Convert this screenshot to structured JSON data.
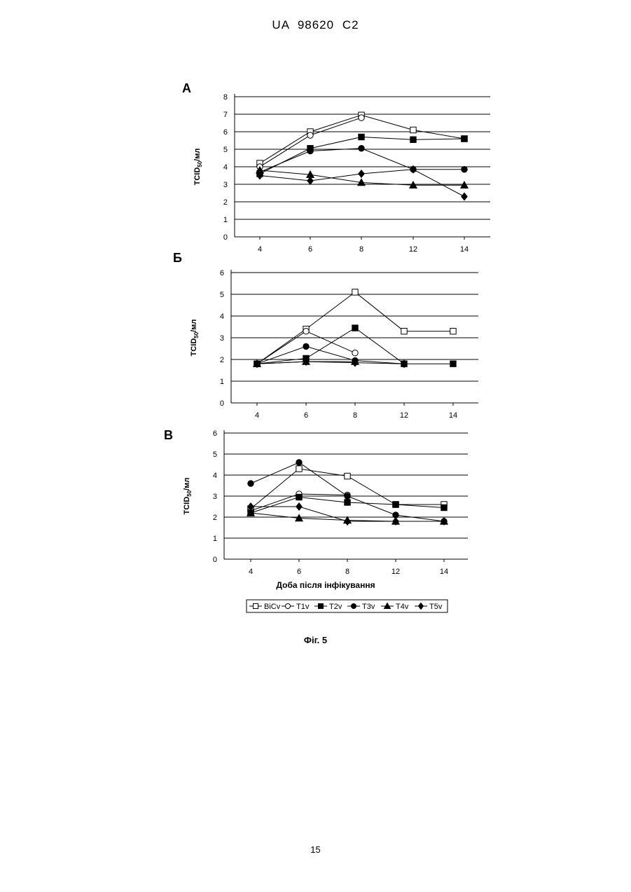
{
  "header": "UA   98620   C2",
  "figure_caption": "Фіг. 5",
  "page_number": "15",
  "x_axis_label": "Доба після інфікування",
  "y_axis_label": "TCID50/мл",
  "colors": {
    "line": "#000000",
    "grid": "#000000",
    "open_fill": "#ffffff",
    "solid_fill": "#000000"
  },
  "chart_data": [
    {
      "panel": "А",
      "type": "line",
      "categories": [
        "4",
        "6",
        "8",
        "12",
        "14"
      ],
      "ylim": [
        0,
        8
      ],
      "yticks": [
        0,
        1,
        2,
        3,
        4,
        5,
        6,
        7,
        8
      ],
      "grid": true,
      "legend": "none",
      "series": [
        {
          "name": "BiCv",
          "marker": "square-open",
          "values": [
            4.2,
            6.0,
            6.95,
            6.1,
            5.6
          ]
        },
        {
          "name": "T1v",
          "marker": "circle-open",
          "values": [
            4.0,
            5.8,
            6.8,
            null,
            null
          ]
        },
        {
          "name": "T2v",
          "marker": "square-solid",
          "values": [
            3.6,
            5.05,
            5.7,
            5.55,
            5.6
          ]
        },
        {
          "name": "T3v",
          "marker": "circle-solid",
          "values": [
            3.7,
            4.9,
            5.05,
            3.85,
            3.85
          ]
        },
        {
          "name": "T4v",
          "marker": "triangle-solid",
          "values": [
            3.8,
            3.55,
            3.1,
            2.95,
            2.95
          ]
        },
        {
          "name": "T5v",
          "marker": "diamond-solid",
          "values": [
            3.5,
            3.2,
            3.6,
            3.85,
            2.3
          ]
        }
      ]
    },
    {
      "panel": "Б",
      "type": "line",
      "categories": [
        "4",
        "6",
        "8",
        "12",
        "14"
      ],
      "ylim": [
        0,
        6
      ],
      "yticks": [
        0,
        1,
        2,
        3,
        4,
        5,
        6
      ],
      "grid": true,
      "legend": "none",
      "series": [
        {
          "name": "BiCv",
          "marker": "square-open",
          "values": [
            1.8,
            3.4,
            5.1,
            3.3,
            3.3
          ]
        },
        {
          "name": "T1v",
          "marker": "circle-open",
          "values": [
            1.8,
            3.3,
            2.3,
            null,
            null
          ]
        },
        {
          "name": "T2v",
          "marker": "square-solid",
          "values": [
            1.8,
            2.05,
            3.45,
            1.8,
            1.8
          ]
        },
        {
          "name": "T3v",
          "marker": "circle-solid",
          "values": [
            1.8,
            2.6,
            1.95,
            1.8,
            null
          ]
        },
        {
          "name": "T4v",
          "marker": "triangle-solid",
          "values": [
            1.8,
            1.9,
            1.9,
            null,
            null
          ]
        },
        {
          "name": "T5v",
          "marker": "diamond-solid",
          "values": [
            1.8,
            1.9,
            1.85,
            1.8,
            null
          ]
        }
      ]
    },
    {
      "panel": "В",
      "type": "line",
      "categories": [
        "4",
        "6",
        "8",
        "12",
        "14"
      ],
      "ylim": [
        0,
        6
      ],
      "yticks": [
        0,
        1,
        2,
        3,
        4,
        5,
        6
      ],
      "grid": true,
      "legend": "bottom",
      "xlabel": "Доба після інфікування",
      "series": [
        {
          "name": "BiCv",
          "marker": "square-open",
          "values": [
            2.4,
            4.3,
            3.95,
            2.6,
            2.6
          ]
        },
        {
          "name": "T1v",
          "marker": "circle-open",
          "values": [
            2.3,
            3.1,
            3.05,
            null,
            null
          ]
        },
        {
          "name": "T2v",
          "marker": "square-solid",
          "values": [
            2.2,
            2.95,
            2.7,
            2.6,
            2.45
          ]
        },
        {
          "name": "T3v",
          "marker": "circle-solid",
          "values": [
            3.6,
            4.6,
            3.0,
            2.1,
            1.8
          ]
        },
        {
          "name": "T4v",
          "marker": "triangle-solid",
          "values": [
            2.2,
            1.95,
            1.85,
            1.8,
            1.8
          ]
        },
        {
          "name": "T5v",
          "marker": "diamond-solid",
          "values": [
            2.5,
            2.5,
            1.8,
            1.8,
            1.8
          ]
        }
      ]
    }
  ]
}
